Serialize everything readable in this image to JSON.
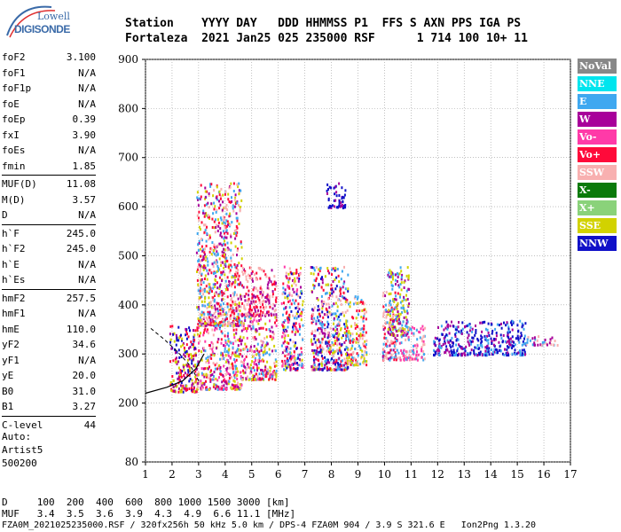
{
  "logo": {
    "line1": "Lowell",
    "line2": "DIGISONDE"
  },
  "header": {
    "line1": "Station    YYYY DAY   DDD HHMMSS P1  FFS S AXN PPS IGA PS",
    "line2": "Fortaleza  2021 Jan25 025 235000 RSF      1 714 100 10+ 11"
  },
  "params": [
    [
      {
        "k": "foF2",
        "v": "3.100"
      },
      {
        "k": "foF1",
        "v": "N/A"
      },
      {
        "k": "foF1p",
        "v": "N/A"
      },
      {
        "k": "foE",
        "v": "N/A"
      },
      {
        "k": "foEp",
        "v": "0.39"
      },
      {
        "k": "fxI",
        "v": "3.90"
      },
      {
        "k": "foEs",
        "v": "N/A"
      },
      {
        "k": "fmin",
        "v": "1.85"
      }
    ],
    [
      {
        "k": "MUF(D)",
        "v": "11.08"
      },
      {
        "k": "M(D)",
        "v": "3.57"
      },
      {
        "k": "D",
        "v": "N/A"
      }
    ],
    [
      {
        "k": "h`F",
        "v": "245.0"
      },
      {
        "k": "h`F2",
        "v": "245.0"
      },
      {
        "k": "h`E",
        "v": "N/A"
      },
      {
        "k": "h`Es",
        "v": "N/A"
      }
    ],
    [
      {
        "k": "hmF2",
        "v": "257.5"
      },
      {
        "k": "hmF1",
        "v": "N/A"
      },
      {
        "k": "hmE",
        "v": "110.0"
      },
      {
        "k": "yF2",
        "v": "34.6"
      },
      {
        "k": "yF1",
        "v": "N/A"
      },
      {
        "k": "yE",
        "v": "20.0"
      },
      {
        "k": "B0",
        "v": "31.0"
      },
      {
        "k": "B1",
        "v": "3.27"
      }
    ],
    [
      {
        "k": "C-level",
        "v": "44"
      }
    ]
  ],
  "auto": {
    "line1": "Auto:",
    "line2": "Artist5",
    "line3": "500200"
  },
  "legend": [
    {
      "label": "NoVal",
      "color": "#888888"
    },
    {
      "label": "NNE",
      "color": "#00e5ee"
    },
    {
      "label": "E",
      "color": "#3fa8f0"
    },
    {
      "label": "W",
      "color": "#a8009a"
    },
    {
      "label": "Vo-",
      "color": "#ff3aa8"
    },
    {
      "label": "Vo+",
      "color": "#ff0a3a"
    },
    {
      "label": "SSW",
      "color": "#f8b0b0"
    },
    {
      "label": "X-",
      "color": "#0a7a0a"
    },
    {
      "label": "X+",
      "color": "#8ad27a"
    },
    {
      "label": "SSE",
      "color": "#d2d200"
    },
    {
      "label": "NNW",
      "color": "#1010c8"
    }
  ],
  "chart_data": {
    "type": "scatter",
    "x_ticks": [
      1,
      2,
      3,
      4,
      5,
      6,
      7,
      8,
      9,
      10,
      11,
      12,
      13,
      14,
      15,
      16,
      17
    ],
    "y_ticks": [
      80,
      200,
      300,
      400,
      500,
      600,
      700,
      800,
      900
    ],
    "xlim": [
      1,
      17
    ],
    "ylim": [
      80,
      900
    ],
    "grid": true,
    "clusters": [
      {
        "x": [
          1.9,
          2.9
        ],
        "y": [
          225,
          360
        ],
        "colors": [
          "#ff0a3a",
          "#a8009a",
          "#d2d200",
          "#1010c8"
        ]
      },
      {
        "x": [
          2.9,
          4.6
        ],
        "y": [
          230,
          360
        ],
        "colors": [
          "#3fa8f0",
          "#a8009a",
          "#ff3aa8",
          "#f8b0b0",
          "#d2d200",
          "#ff0a3a"
        ]
      },
      {
        "x": [
          2.9,
          4.6
        ],
        "y": [
          360,
          650
        ],
        "colors": [
          "#a8009a",
          "#3fa8f0",
          "#d2d200",
          "#ff0a3a",
          "#f8b0b0"
        ]
      },
      {
        "x": [
          4.6,
          5.9
        ],
        "y": [
          250,
          380
        ],
        "colors": [
          "#3fa8f0",
          "#ff3aa8",
          "#f8b0b0",
          "#a8009a",
          "#d2d200",
          "#ff0a3a"
        ]
      },
      {
        "x": [
          4.6,
          5.9
        ],
        "y": [
          380,
          480
        ],
        "colors": [
          "#a8009a",
          "#ff0a3a",
          "#f8b0b0"
        ]
      },
      {
        "x": [
          6.1,
          6.9
        ],
        "y": [
          270,
          480
        ],
        "colors": [
          "#3fa8f0",
          "#a8009a",
          "#f8b0b0",
          "#ff3aa8",
          "#d2d200",
          "#ff0a3a",
          "#1010c8"
        ]
      },
      {
        "x": [
          7.2,
          8.6
        ],
        "y": [
          270,
          480
        ],
        "colors": [
          "#3fa8f0",
          "#d2d200",
          "#1010c8",
          "#a8009a",
          "#f8b0b0",
          "#ff0a3a"
        ]
      },
      {
        "x": [
          7.8,
          8.5
        ],
        "y": [
          600,
          650
        ],
        "colors": [
          "#1010c8",
          "#1010c8",
          "#a8009a"
        ]
      },
      {
        "x": [
          8.5,
          9.3
        ],
        "y": [
          280,
          420
        ],
        "colors": [
          "#f8b0b0",
          "#ff0a3a",
          "#3fa8f0",
          "#d2d200"
        ]
      },
      {
        "x": [
          9.9,
          10.5
        ],
        "y": [
          290,
          430
        ],
        "colors": [
          "#ff0a3a",
          "#f8b0b0",
          "#a8009a",
          "#3fa8f0"
        ]
      },
      {
        "x": [
          10.1,
          10.9
        ],
        "y": [
          340,
          480
        ],
        "colors": [
          "#d2d200",
          "#3fa8f0",
          "#a8009a"
        ]
      },
      {
        "x": [
          10.5,
          11.5
        ],
        "y": [
          290,
          360
        ],
        "colors": [
          "#f8b0b0",
          "#3fa8f0",
          "#ff3aa8"
        ]
      },
      {
        "x": [
          11.8,
          15.3
        ],
        "y": [
          300,
          370
        ],
        "colors": [
          "#1010c8",
          "#3fa8f0",
          "#1010c8",
          "#a8009a"
        ]
      },
      {
        "x": [
          15.2,
          16.5
        ],
        "y": [
          320,
          340
        ],
        "colors": [
          "#3fa8f0",
          "#a8009a",
          "#f8b0b0"
        ]
      }
    ],
    "trace_solid": {
      "x": [
        1,
        1.8,
        2.4,
        2.9,
        3.2
      ],
      "y": [
        220,
        232,
        245,
        270,
        300
      ]
    },
    "trace_dashed": {
      "x": [
        1.2,
        1.7,
        2.2,
        2.7,
        3.0
      ],
      "y": [
        352,
        330,
        305,
        275,
        245
      ]
    }
  },
  "footer": {
    "line1": "D     100  200  400  600  800 1000 1500 3000 [km]",
    "line2": "MUF   3.4  3.5  3.6  3.9  4.3  4.9  6.6 11.1 [MHz]",
    "line3": "FZA0M_2021025235000.RSF / 320fx256h 50 kHz 5.0 km / DPS-4 FZA0M 904 / 3.9 S 321.6 E   Ion2Png 1.3.20"
  }
}
